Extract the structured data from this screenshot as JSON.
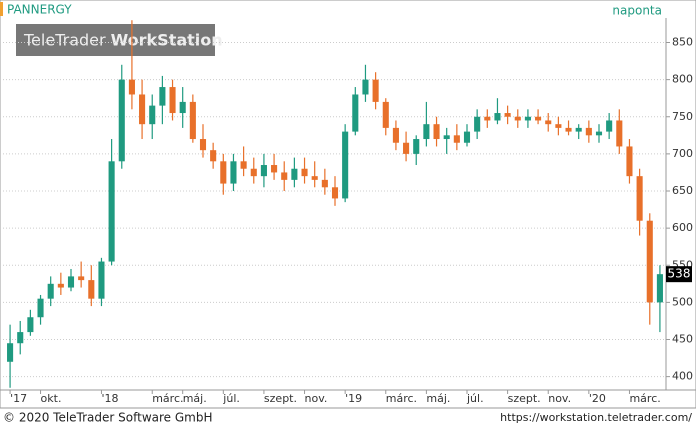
{
  "chart_data": {
    "type": "candlestick",
    "title": "PANNERGY",
    "subtitle": "naponta",
    "watermark_brand": "TeleTrader",
    "watermark_product": "WorkStation",
    "categories": [
      "'17",
      null,
      null,
      "okt.",
      null,
      null,
      null,
      null,
      null,
      "'18",
      null,
      null,
      null,
      null,
      "márc.",
      null,
      null,
      "máj.",
      null,
      null,
      null,
      "júl.",
      null,
      null,
      null,
      "szept.",
      null,
      null,
      null,
      "nov.",
      null,
      null,
      null,
      "'19",
      null,
      null,
      null,
      "márc.",
      null,
      null,
      null,
      "máj.",
      null,
      null,
      null,
      "júl.",
      null,
      null,
      null,
      "szept.",
      null,
      null,
      null,
      "nov.",
      null,
      null,
      null,
      "'20",
      null,
      null,
      null,
      "márc.",
      null,
      null,
      null
    ],
    "open": [
      420,
      445,
      460,
      480,
      505,
      525,
      520,
      535,
      530,
      505,
      555,
      690,
      800,
      780,
      740,
      765,
      790,
      755,
      770,
      720,
      705,
      690,
      660,
      690,
      680,
      670,
      685,
      675,
      665,
      680,
      670,
      665,
      655,
      640,
      730,
      780,
      800,
      770,
      735,
      715,
      700,
      720,
      740,
      720,
      725,
      715,
      730,
      750,
      745,
      755,
      750,
      745,
      750,
      745,
      740,
      735,
      730,
      735,
      725,
      730,
      745,
      710,
      670,
      610,
      500
    ],
    "high": [
      470,
      475,
      490,
      510,
      535,
      540,
      545,
      555,
      550,
      560,
      720,
      820,
      880,
      800,
      780,
      805,
      800,
      790,
      780,
      740,
      715,
      700,
      700,
      710,
      695,
      700,
      700,
      690,
      695,
      695,
      690,
      680,
      670,
      740,
      790,
      820,
      810,
      775,
      745,
      730,
      725,
      770,
      750,
      735,
      740,
      740,
      760,
      760,
      775,
      765,
      760,
      760,
      760,
      755,
      750,
      745,
      740,
      745,
      740,
      755,
      760,
      720,
      680,
      620,
      550
    ],
    "low": [
      385,
      430,
      455,
      470,
      495,
      510,
      515,
      520,
      495,
      495,
      550,
      680,
      760,
      720,
      720,
      740,
      745,
      735,
      715,
      695,
      680,
      645,
      650,
      670,
      660,
      655,
      665,
      650,
      655,
      660,
      655,
      645,
      630,
      635,
      725,
      770,
      760,
      725,
      705,
      690,
      685,
      710,
      710,
      700,
      705,
      710,
      720,
      735,
      740,
      740,
      735,
      735,
      740,
      730,
      725,
      725,
      720,
      715,
      715,
      720,
      700,
      660,
      590,
      470,
      460
    ],
    "close": [
      445,
      460,
      480,
      505,
      525,
      520,
      535,
      530,
      505,
      555,
      690,
      800,
      780,
      740,
      765,
      790,
      755,
      770,
      720,
      705,
      690,
      660,
      690,
      680,
      670,
      685,
      675,
      665,
      680,
      670,
      665,
      655,
      640,
      730,
      780,
      800,
      770,
      735,
      715,
      700,
      720,
      740,
      720,
      725,
      715,
      730,
      750,
      745,
      755,
      750,
      745,
      750,
      745,
      740,
      735,
      730,
      735,
      725,
      730,
      745,
      710,
      670,
      610,
      500,
      538
    ],
    "up_color": "#1f9a80",
    "down_color": "#e8702a",
    "ylim": [
      382,
      883
    ],
    "yticks": [
      400,
      450,
      500,
      550,
      600,
      650,
      700,
      750,
      800,
      850
    ],
    "grid": true
  },
  "footer": {
    "copyright": "© 2020 TeleTrader Software GmbH",
    "url": "https://workstation.teletrader.com/"
  }
}
